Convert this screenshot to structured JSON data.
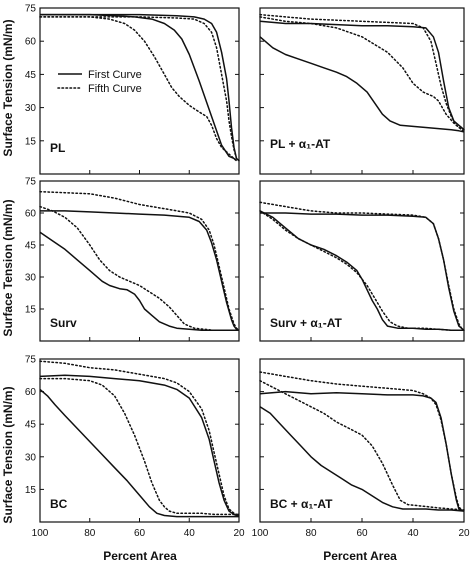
{
  "figure": {
    "ylabel": "Surface Tension (mN/m)",
    "xlabel": "Percent Area",
    "legend": {
      "solid_label": "First Curve",
      "dotted_label": "Fifth Curve"
    }
  },
  "chart_data": [
    {
      "type": "line",
      "panel_label": "PL",
      "xlim": [
        100,
        20
      ],
      "ylim": [
        0,
        75
      ],
      "xticks": [
        100,
        80,
        60,
        40,
        20
      ],
      "yticks": [
        0,
        15,
        30,
        45,
        60,
        75
      ],
      "show_xticklabels": false,
      "show_yticklabels": true,
      "series": [
        {
          "name": "First Curve",
          "style": "solid",
          "x": [
            100,
            90,
            80,
            70,
            62,
            55,
            50,
            46,
            43,
            40,
            36,
            31,
            27,
            24,
            22,
            21
          ],
          "y": [
            72,
            72,
            72,
            71.5,
            71,
            70,
            68,
            65,
            61,
            54,
            42,
            26,
            13,
            8,
            7,
            6
          ]
        },
        {
          "name": "First Curve",
          "style": "solid",
          "x": [
            100,
            80,
            60,
            45,
            38,
            34,
            31,
            29,
            27,
            25,
            24,
            23,
            22,
            21,
            20
          ],
          "y": [
            72,
            72,
            72,
            71.5,
            71,
            70,
            68,
            64,
            55,
            43,
            33,
            21,
            12,
            7,
            6
          ]
        },
        {
          "name": "Fifth Curve",
          "style": "dotted",
          "x": [
            100,
            90,
            80,
            72,
            66,
            62,
            58,
            54,
            50,
            47,
            44,
            40,
            36,
            33,
            31,
            29,
            27,
            25,
            23,
            21
          ],
          "y": [
            71,
            71,
            71,
            70,
            68,
            65,
            60,
            53,
            45,
            39,
            35,
            31,
            28,
            26,
            22,
            16,
            12,
            10,
            8,
            6
          ]
        },
        {
          "name": "Fifth Curve",
          "style": "dotted",
          "x": [
            100,
            80,
            60,
            45,
            38,
            34,
            31,
            29,
            27,
            25,
            24,
            23,
            22,
            21,
            20
          ],
          "y": [
            71,
            71,
            71,
            70.5,
            70,
            68,
            64,
            57,
            45,
            33,
            24,
            17,
            11,
            7,
            6
          ]
        }
      ]
    },
    {
      "type": "line",
      "panel_label": "PL + α₁-AT",
      "xlim": [
        100,
        20
      ],
      "ylim": [
        0,
        75
      ],
      "xticks": [
        100,
        80,
        60,
        40,
        20
      ],
      "yticks": [
        0,
        15,
        30,
        45,
        60,
        75
      ],
      "show_xticklabels": false,
      "show_yticklabels": false,
      "series": [
        {
          "name": "First Curve",
          "style": "solid",
          "x": [
            100,
            95,
            90,
            85,
            80,
            75,
            70,
            66,
            62,
            58,
            55,
            52,
            49,
            45,
            40,
            35,
            30,
            25,
            22,
            20
          ],
          "y": [
            62,
            57,
            54,
            52,
            50,
            48,
            46,
            44,
            41,
            37,
            32,
            27,
            24,
            22,
            21.5,
            21,
            20.5,
            20,
            19.5,
            19
          ]
        },
        {
          "name": "First Curve",
          "style": "solid",
          "x": [
            100,
            90,
            80,
            70,
            60,
            50,
            40,
            35,
            32,
            30,
            28,
            26,
            24,
            22,
            21,
            20
          ],
          "y": [
            69,
            68,
            68,
            67.5,
            67,
            67,
            66.5,
            66,
            62,
            55,
            42,
            30,
            24,
            22,
            21,
            20
          ]
        },
        {
          "name": "Fifth Curve",
          "style": "dotted",
          "x": [
            100,
            90,
            80,
            70,
            60,
            50,
            44,
            40,
            36,
            32,
            30,
            27,
            24,
            22,
            20
          ],
          "y": [
            71,
            69,
            68,
            66,
            62,
            55,
            48,
            41,
            37,
            35,
            33,
            27,
            23,
            21,
            20
          ]
        },
        {
          "name": "Fifth Curve",
          "style": "dotted",
          "x": [
            100,
            90,
            80,
            70,
            60,
            50,
            40,
            36,
            33,
            31,
            29,
            27,
            25,
            23,
            21,
            20
          ],
          "y": [
            72,
            71,
            70,
            69.5,
            69,
            68.5,
            68,
            66,
            60,
            50,
            40,
            32,
            26,
            22,
            20,
            19
          ]
        }
      ]
    },
    {
      "type": "line",
      "panel_label": "Surv",
      "xlim": [
        100,
        20
      ],
      "ylim": [
        0,
        75
      ],
      "xticks": [
        100,
        80,
        60,
        40,
        20
      ],
      "yticks": [
        0,
        15,
        30,
        45,
        60,
        75
      ],
      "show_xticklabels": false,
      "show_yticklabels": true,
      "series": [
        {
          "name": "First Curve",
          "style": "solid",
          "x": [
            100,
            95,
            90,
            85,
            80,
            75,
            72,
            68,
            65,
            62,
            60,
            58,
            55,
            52,
            48,
            45,
            40,
            35,
            30,
            25,
            22,
            20
          ],
          "y": [
            51,
            47,
            43,
            38,
            33,
            28,
            26,
            24.5,
            24,
            22,
            19,
            15,
            12,
            9,
            7,
            6,
            5.5,
            5,
            5,
            5,
            5,
            5
          ]
        },
        {
          "name": "First Curve",
          "style": "solid",
          "x": [
            100,
            90,
            80,
            70,
            60,
            50,
            40,
            36,
            33,
            31,
            29,
            27,
            25,
            23,
            22,
            21,
            20
          ],
          "y": [
            61,
            61,
            60.5,
            60,
            59.5,
            59,
            58,
            56,
            52,
            46,
            38,
            28,
            18,
            10,
            7,
            5.5,
            5
          ]
        },
        {
          "name": "Fifth Curve",
          "style": "dotted",
          "x": [
            100,
            95,
            90,
            85,
            80,
            76,
            72,
            68,
            64,
            60,
            56,
            52,
            48,
            45,
            42,
            38,
            34,
            30,
            25,
            20
          ],
          "y": [
            63,
            61,
            58,
            53,
            45,
            38,
            33,
            30,
            28,
            26,
            23,
            20,
            16,
            12,
            8,
            6,
            5.5,
            5,
            5,
            5
          ]
        },
        {
          "name": "Fifth Curve",
          "style": "dotted",
          "x": [
            100,
            90,
            80,
            70,
            60,
            50,
            40,
            35,
            32,
            30,
            28,
            26,
            24,
            22,
            21,
            20
          ],
          "y": [
            70,
            69.5,
            69,
            67,
            64,
            62,
            60,
            57,
            52,
            45,
            35,
            25,
            15,
            8,
            6,
            5
          ]
        }
      ]
    },
    {
      "type": "line",
      "panel_label": "Surv + α₁-AT",
      "xlim": [
        100,
        20
      ],
      "ylim": [
        0,
        75
      ],
      "xticks": [
        100,
        80,
        60,
        40,
        20
      ],
      "yticks": [
        0,
        15,
        30,
        45,
        60,
        75
      ],
      "show_xticklabels": false,
      "show_yticklabels": false,
      "series": [
        {
          "name": "First Curve",
          "style": "solid",
          "x": [
            100,
            95,
            90,
            85,
            80,
            75,
            70,
            66,
            62,
            60,
            58,
            56,
            54,
            52,
            50,
            46,
            40,
            35,
            30,
            25,
            22,
            20
          ],
          "y": [
            61,
            58,
            53,
            48,
            45,
            43,
            40,
            37,
            33,
            29,
            24,
            19,
            15,
            10,
            7,
            6,
            6,
            5.5,
            5.5,
            5,
            5,
            5
          ]
        },
        {
          "name": "First Curve",
          "style": "solid",
          "x": [
            100,
            90,
            80,
            70,
            60,
            50,
            40,
            35,
            32,
            30,
            28,
            26,
            24,
            22,
            21,
            20
          ],
          "y": [
            60,
            60,
            59.5,
            59.5,
            59,
            59,
            58.5,
            58,
            55,
            48,
            38,
            25,
            14,
            7,
            6,
            5
          ]
        },
        {
          "name": "Fifth Curve",
          "style": "dotted",
          "x": [
            100,
            95,
            90,
            85,
            80,
            75,
            70,
            66,
            62,
            58,
            55,
            52,
            49,
            46,
            42,
            36,
            30,
            25,
            20
          ],
          "y": [
            61,
            57,
            52,
            48,
            45,
            42,
            39,
            36,
            32,
            26,
            20,
            14,
            9,
            7,
            6,
            6,
            5.5,
            5,
            5
          ]
        },
        {
          "name": "Fifth Curve",
          "style": "dotted",
          "x": [
            100,
            90,
            80,
            70,
            60,
            50,
            40,
            35,
            32,
            30,
            28,
            26,
            24,
            22,
            21,
            20
          ],
          "y": [
            65,
            63,
            61,
            60,
            60,
            59.5,
            59,
            58,
            55,
            48,
            38,
            26,
            15,
            8,
            6,
            5
          ]
        }
      ]
    },
    {
      "type": "line",
      "panel_label": "BC",
      "xlim": [
        100,
        20
      ],
      "ylim": [
        0,
        75
      ],
      "xticks": [
        100,
        80,
        60,
        40,
        20
      ],
      "yticks": [
        0,
        15,
        30,
        45,
        60,
        75
      ],
      "show_xticklabels": true,
      "show_yticklabels": true,
      "series": [
        {
          "name": "First Curve",
          "style": "solid",
          "x": [
            100,
            97,
            94,
            90,
            85,
            80,
            75,
            70,
            65,
            62,
            59,
            56,
            53,
            50,
            45,
            40,
            35,
            30,
            25,
            20
          ],
          "y": [
            61,
            58,
            54,
            49,
            43,
            37,
            31,
            25,
            19,
            15,
            11,
            7,
            4,
            3,
            2.5,
            2.5,
            2.5,
            2.5,
            2.5,
            2.5
          ]
        },
        {
          "name": "First Curve",
          "style": "solid",
          "x": [
            100,
            90,
            80,
            70,
            60,
            50,
            45,
            40,
            35,
            32,
            30,
            28,
            26,
            24,
            22,
            21,
            20
          ],
          "y": [
            67,
            67.5,
            67,
            66,
            65,
            63,
            61,
            57,
            48,
            38,
            28,
            18,
            10,
            5,
            3.5,
            3,
            3
          ]
        },
        {
          "name": "Fifth Curve",
          "style": "dotted",
          "x": [
            100,
            90,
            80,
            75,
            70,
            66,
            62,
            58,
            55,
            52,
            50,
            48,
            45,
            40,
            35,
            30,
            25,
            20
          ],
          "y": [
            66,
            66,
            65,
            63,
            58,
            50,
            40,
            28,
            18,
            10,
            7,
            5,
            4,
            4,
            4,
            3.5,
            3.5,
            3.5
          ]
        },
        {
          "name": "Fifth Curve",
          "style": "dotted",
          "x": [
            100,
            90,
            80,
            70,
            60,
            50,
            45,
            40,
            35,
            32,
            30,
            28,
            26,
            24,
            22,
            21,
            20
          ],
          "y": [
            74,
            73,
            71,
            70,
            68,
            66,
            64,
            60,
            52,
            42,
            32,
            22,
            12,
            6,
            4,
            3.5,
            3
          ]
        }
      ]
    },
    {
      "type": "line",
      "panel_label": "BC + α₁-AT",
      "xlim": [
        100,
        20
      ],
      "ylim": [
        0,
        75
      ],
      "xticks": [
        100,
        80,
        60,
        40,
        20
      ],
      "yticks": [
        0,
        15,
        30,
        45,
        60,
        75
      ],
      "show_xticklabels": true,
      "show_yticklabels": false,
      "series": [
        {
          "name": "First Curve",
          "style": "solid",
          "x": [
            100,
            96,
            92,
            88,
            84,
            80,
            76,
            72,
            68,
            64,
            60,
            56,
            52,
            48,
            44,
            40,
            35,
            30,
            25,
            20
          ],
          "y": [
            53,
            50,
            45,
            40,
            35,
            30,
            26,
            23,
            20,
            17,
            15,
            12,
            9,
            7,
            6,
            6,
            6,
            5.5,
            5.5,
            5
          ]
        },
        {
          "name": "First Curve",
          "style": "solid",
          "x": [
            100,
            90,
            80,
            70,
            60,
            50,
            40,
            36,
            33,
            31,
            29,
            27,
            25,
            23,
            22,
            21,
            20
          ],
          "y": [
            59,
            60,
            59,
            59.5,
            59,
            58.5,
            58.5,
            58,
            57,
            55,
            48,
            36,
            22,
            10,
            6,
            5.5,
            5
          ]
        },
        {
          "name": "Fifth Curve",
          "style": "dotted",
          "x": [
            100,
            95,
            90,
            85,
            80,
            75,
            70,
            65,
            60,
            56,
            52,
            48,
            45,
            42,
            38,
            34,
            30,
            25,
            20
          ],
          "y": [
            65,
            62,
            59,
            56,
            53,
            50,
            46,
            43,
            40,
            35,
            27,
            17,
            10,
            8,
            7.5,
            7,
            6.5,
            6,
            5.5
          ]
        },
        {
          "name": "Fifth Curve",
          "style": "dotted",
          "x": [
            100,
            90,
            80,
            70,
            60,
            50,
            40,
            36,
            33,
            31,
            29,
            27,
            25,
            23,
            22,
            21,
            20
          ],
          "y": [
            69,
            67,
            65,
            63.5,
            62.5,
            61.5,
            60.5,
            59,
            57,
            54,
            47,
            36,
            22,
            11,
            7,
            5.5,
            5
          ]
        }
      ]
    }
  ]
}
